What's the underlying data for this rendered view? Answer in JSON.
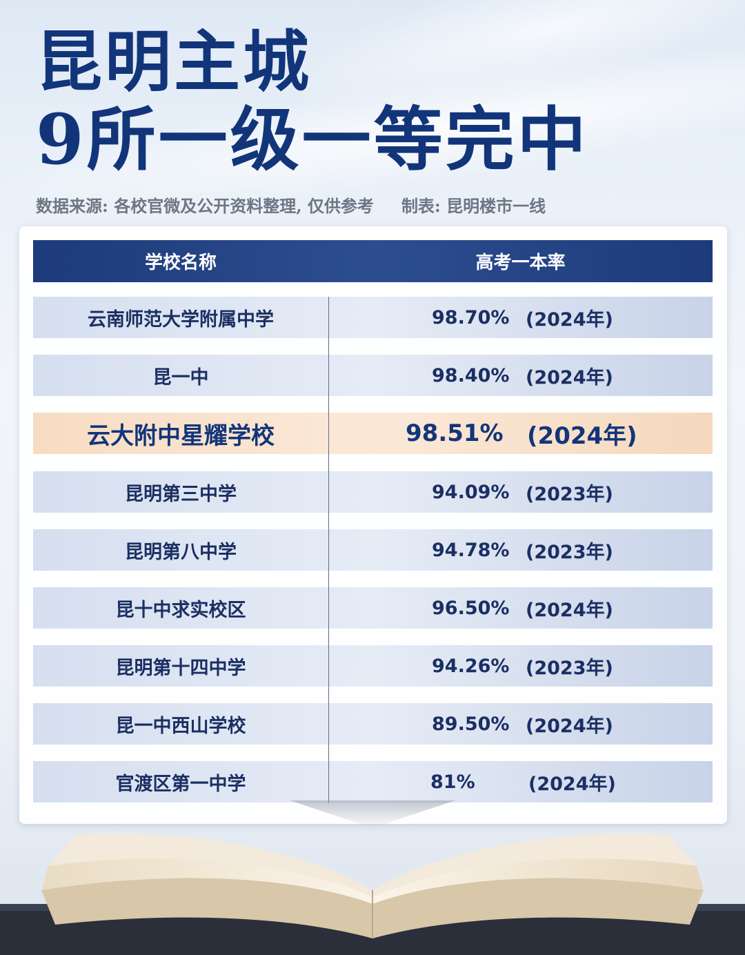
{
  "title": {
    "line1": "昆明主城",
    "line2": "9所一级一等完中"
  },
  "source": {
    "data_source": "数据来源: 各校官微及公开资料整理, 仅供参考",
    "made_by": "制表: 昆明楼市一线"
  },
  "table": {
    "headers": [
      "学校名称",
      "高考一本率"
    ],
    "rows": [
      {
        "name": "云南师范大学附属中学",
        "rate": "98.70%",
        "year": "(2024年)"
      },
      {
        "name": "昆一中",
        "rate": "98.40%",
        "year": "(2024年)"
      },
      {
        "name": "云大附中星耀学校",
        "rate": "98.51%",
        "year": "(2024年)"
      },
      {
        "name": "昆明第三中学",
        "rate": "94.09%",
        "year": "(2023年)"
      },
      {
        "name": "昆明第八中学",
        "rate": "94.78%",
        "year": "(2023年)"
      },
      {
        "name": "昆十中求实校区",
        "rate": "96.50%",
        "year": "(2024年)"
      },
      {
        "name": "昆明第十四中学",
        "rate": "94.26%",
        "year": "(2023年)"
      },
      {
        "name": "昆一中西山学校",
        "rate": "89.50%",
        "year": "(2024年)"
      },
      {
        "name": "官渡区第一中学",
        "rate": "81%",
        "year": "(2024年)"
      }
    ]
  },
  "colors": {
    "title": "#12357a",
    "header_bg": "#1d3b7a",
    "row_bg": "#d6dff0",
    "highlight_bg": "#f7dcc2"
  }
}
